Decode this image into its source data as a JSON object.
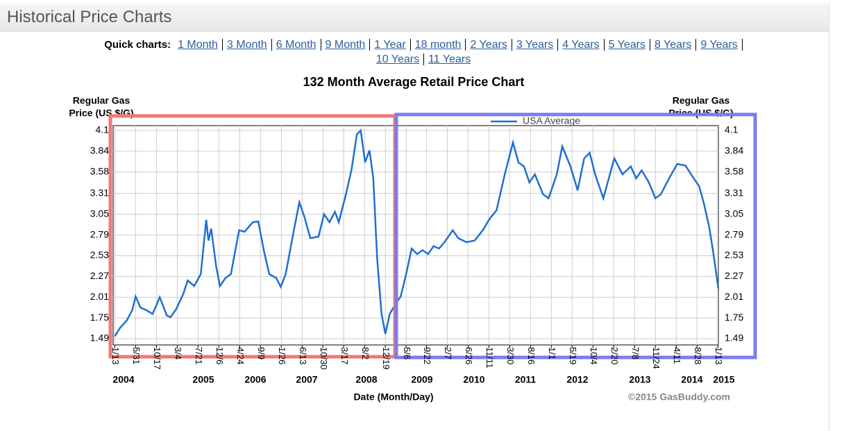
{
  "header": {
    "title": "Historical Price Charts"
  },
  "quick_charts": {
    "label": "Quick charts:",
    "links": [
      "1 Month",
      "3 Month",
      "6 Month",
      "9 Month",
      "1 Year",
      "18 month",
      "2 Years",
      "3 Years",
      "4 Years",
      "5 Years",
      "8 Years",
      "9 Years",
      "10 Years",
      "11 Years"
    ]
  },
  "chart_data": {
    "type": "line",
    "title": "132 Month Average Retail Price Chart",
    "ylabel": [
      "Regular Gas",
      "Price (US $/G)"
    ],
    "y2label": [
      "Regular Gas",
      "Price (US $/G)"
    ],
    "xlabel": "Date (Month/Day)",
    "credit": "©2015 GasBuddy.com",
    "grid": true,
    "legend": "top",
    "ylim": [
      1.49,
      4.1
    ],
    "yticks": [
      1.49,
      1.75,
      2.01,
      2.27,
      2.53,
      2.79,
      3.05,
      3.31,
      3.58,
      3.84,
      4.1
    ],
    "xlim": [
      2004.0,
      2015.05
    ],
    "xticks": [
      {
        "value": 2004.03,
        "label": "1/13"
      },
      {
        "value": 2004.41,
        "label": "5/31"
      },
      {
        "value": 2004.79,
        "label": "10/17"
      },
      {
        "value": 2005.17,
        "label": "3/4"
      },
      {
        "value": 2005.55,
        "label": "7/21"
      },
      {
        "value": 2005.93,
        "label": "12/6"
      },
      {
        "value": 2006.31,
        "label": "4/24"
      },
      {
        "value": 2006.69,
        "label": "9/9"
      },
      {
        "value": 2007.07,
        "label": "1/26"
      },
      {
        "value": 2007.45,
        "label": "6/13"
      },
      {
        "value": 2007.83,
        "label": "10/30"
      },
      {
        "value": 2008.21,
        "label": "3/17"
      },
      {
        "value": 2008.59,
        "label": "8/2"
      },
      {
        "value": 2008.97,
        "label": "12/19"
      },
      {
        "value": 2009.35,
        "label": "5/6"
      },
      {
        "value": 2009.72,
        "label": "9/22"
      },
      {
        "value": 2010.1,
        "label": "2/7"
      },
      {
        "value": 2010.48,
        "label": "6/26"
      },
      {
        "value": 2010.86,
        "label": "11/11"
      },
      {
        "value": 2011.24,
        "label": "3/30"
      },
      {
        "value": 2011.62,
        "label": "8/16"
      },
      {
        "value": 2012.0,
        "label": "1/1"
      },
      {
        "value": 2012.38,
        "label": "5/19"
      },
      {
        "value": 2012.76,
        "label": "10/4"
      },
      {
        "value": 2013.14,
        "label": "2/20"
      },
      {
        "value": 2013.52,
        "label": "7/8"
      },
      {
        "value": 2013.9,
        "label": "11/24"
      },
      {
        "value": 2014.28,
        "label": "4/11"
      },
      {
        "value": 2014.66,
        "label": "8/28"
      },
      {
        "value": 2015.04,
        "label": "1/13"
      }
    ],
    "year_labels": [
      "2004",
      "2005",
      "2006",
      "2007",
      "2008",
      "2009",
      "2010",
      "2011",
      "2012",
      "2013",
      "2014",
      "2015"
    ],
    "x": [
      2004.03,
      2004.12,
      2004.25,
      2004.35,
      2004.41,
      2004.5,
      2004.6,
      2004.72,
      2004.85,
      2004.98,
      2005.05,
      2005.15,
      2005.28,
      2005.36,
      2005.48,
      2005.6,
      2005.7,
      2005.74,
      2005.79,
      2005.88,
      2005.95,
      2006.05,
      2006.15,
      2006.3,
      2006.4,
      2006.55,
      2006.65,
      2006.75,
      2006.85,
      2006.98,
      2007.06,
      2007.15,
      2007.3,
      2007.4,
      2007.5,
      2007.6,
      2007.75,
      2007.85,
      2007.95,
      2008.05,
      2008.12,
      2008.25,
      2008.35,
      2008.45,
      2008.52,
      2008.6,
      2008.68,
      2008.75,
      2008.82,
      2008.9,
      2008.97,
      2009.05,
      2009.15,
      2009.25,
      2009.35,
      2009.45,
      2009.55,
      2009.65,
      2009.75,
      2009.85,
      2009.95,
      2010.05,
      2010.2,
      2010.3,
      2010.45,
      2010.6,
      2010.75,
      2010.88,
      2011.0,
      2011.15,
      2011.3,
      2011.4,
      2011.5,
      2011.6,
      2011.7,
      2011.85,
      2011.95,
      2012.1,
      2012.2,
      2012.35,
      2012.48,
      2012.6,
      2012.7,
      2012.8,
      2012.95,
      2013.05,
      2013.15,
      2013.3,
      2013.45,
      2013.55,
      2013.65,
      2013.78,
      2013.9,
      2014.0,
      2014.15,
      2014.3,
      2014.45,
      2014.6,
      2014.7,
      2014.78,
      2014.88,
      2014.95,
      2015.05
    ],
    "series": [
      {
        "name": "USA Average",
        "color": "#1f6fd0",
        "values": [
          1.52,
          1.62,
          1.72,
          1.85,
          2.02,
          1.88,
          1.85,
          1.8,
          2.01,
          1.78,
          1.76,
          1.86,
          2.05,
          2.22,
          2.15,
          2.3,
          2.98,
          2.72,
          2.87,
          2.4,
          2.15,
          2.25,
          2.3,
          2.85,
          2.83,
          2.95,
          2.96,
          2.6,
          2.3,
          2.25,
          2.14,
          2.3,
          2.85,
          3.2,
          3.0,
          2.75,
          2.77,
          3.05,
          2.95,
          3.08,
          2.95,
          3.3,
          3.6,
          4.05,
          4.1,
          3.7,
          3.85,
          3.5,
          2.5,
          1.8,
          1.55,
          1.8,
          1.92,
          2.02,
          2.3,
          2.62,
          2.55,
          2.6,
          2.55,
          2.65,
          2.62,
          2.7,
          2.85,
          2.75,
          2.7,
          2.72,
          2.85,
          3.0,
          3.1,
          3.55,
          3.95,
          3.7,
          3.65,
          3.45,
          3.55,
          3.3,
          3.25,
          3.55,
          3.9,
          3.65,
          3.35,
          3.75,
          3.82,
          3.55,
          3.25,
          3.5,
          3.75,
          3.55,
          3.65,
          3.5,
          3.6,
          3.45,
          3.25,
          3.3,
          3.5,
          3.68,
          3.66,
          3.5,
          3.4,
          3.2,
          2.9,
          2.6,
          2.12
        ]
      }
    ]
  }
}
